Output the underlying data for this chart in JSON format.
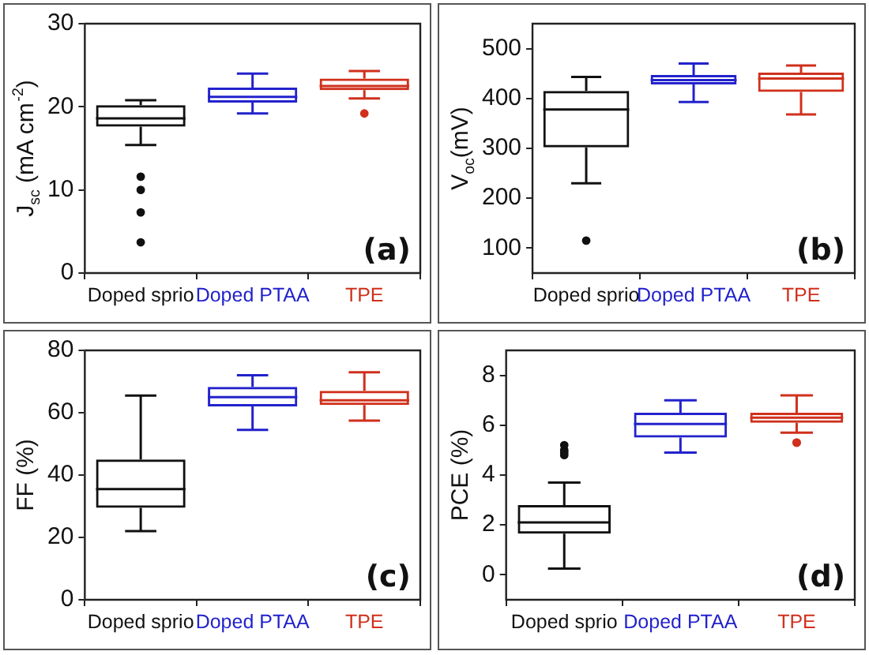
{
  "chart_data": [
    {
      "type": "box",
      "categories": [
        "Doped sprio",
        "Doped PTAA",
        "TPE"
      ],
      "colors": [
        "#111111",
        "#2222cc",
        "#d0301c"
      ],
      "ylabel": "J$_{sc}$ (mA cm$^{-2}$)",
      "ylim": [
        0,
        30
      ],
      "yticks": [
        0,
        10,
        20,
        30
      ],
      "annotations": [
        "(a)"
      ],
      "legend": false,
      "grid": false,
      "boxes": [
        {
          "low": 15.4,
          "q1": 17.6,
          "median": 18.6,
          "q3": 20.2,
          "high": 20.8,
          "outliers": [
            11.6,
            10,
            7.3,
            3.7
          ]
        },
        {
          "low": 19.2,
          "q1": 20.5,
          "median": 21.2,
          "q3": 22.3,
          "high": 24
        },
        {
          "low": 21,
          "q1": 22,
          "median": 22.5,
          "q3": 23.4,
          "high": 24.3,
          "outliers": [
            19.2
          ]
        }
      ]
    },
    {
      "type": "box",
      "categories": [
        "Doped sprio",
        "Doped PTAA",
        "TPE"
      ],
      "colors": [
        "#111111",
        "#2222cc",
        "#d0301c"
      ],
      "ylabel": "V$_{oc}$(mV)",
      "ylim": [
        50,
        550
      ],
      "yticks": [
        100,
        200,
        300,
        400,
        500
      ],
      "annotations": [
        "(b)"
      ],
      "legend": false,
      "grid": false,
      "boxes": [
        {
          "low": 230,
          "q1": 302,
          "median": 378,
          "q3": 415,
          "high": 443,
          "outliers": [
            115
          ]
        },
        {
          "low": 393,
          "q1": 428,
          "median": 437,
          "q3": 447,
          "high": 470
        },
        {
          "low": 368,
          "q1": 413,
          "median": 440,
          "q3": 452,
          "high": 466
        }
      ]
    },
    {
      "type": "box",
      "categories": [
        "Doped sprio",
        "Doped PTAA",
        "TPE"
      ],
      "colors": [
        "#111111",
        "#2222cc",
        "#d0301c"
      ],
      "ylabel": "FF (%)",
      "ylim": [
        0,
        80
      ],
      "yticks": [
        0,
        20,
        40,
        60,
        80
      ],
      "annotations": [
        "(c)"
      ],
      "legend": false,
      "grid": false,
      "boxes": [
        {
          "low": 22,
          "q1": 29.5,
          "median": 35.5,
          "q3": 45,
          "high": 65.5
        },
        {
          "low": 54.5,
          "q1": 62,
          "median": 65,
          "q3": 68.3,
          "high": 72
        },
        {
          "low": 57.5,
          "q1": 62.5,
          "median": 64,
          "q3": 67,
          "high": 73
        }
      ]
    },
    {
      "type": "box",
      "categories": [
        "Doped sprio",
        "Doped PTAA",
        "TPE"
      ],
      "colors": [
        "#111111",
        "#2222cc",
        "#d0301c"
      ],
      "ylabel": "PCE (%)",
      "ylim": [
        -1,
        9
      ],
      "yticks": [
        0,
        2,
        4,
        6,
        8
      ],
      "annotations": [
        "(d)"
      ],
      "legend": false,
      "grid": false,
      "boxes": [
        {
          "low": 0.25,
          "q1": 1.65,
          "median": 2.1,
          "q3": 2.8,
          "high": 3.7,
          "outliers": [
            4.8,
            5,
            5.2,
            4.9
          ]
        },
        {
          "low": 4.9,
          "q1": 5.5,
          "median": 6.05,
          "q3": 6.5,
          "high": 7
        },
        {
          "low": 5.7,
          "q1": 6.1,
          "median": 6.3,
          "q3": 6.5,
          "high": 7.2,
          "outliers": [
            5.3,
            5.3
          ]
        }
      ]
    }
  ]
}
